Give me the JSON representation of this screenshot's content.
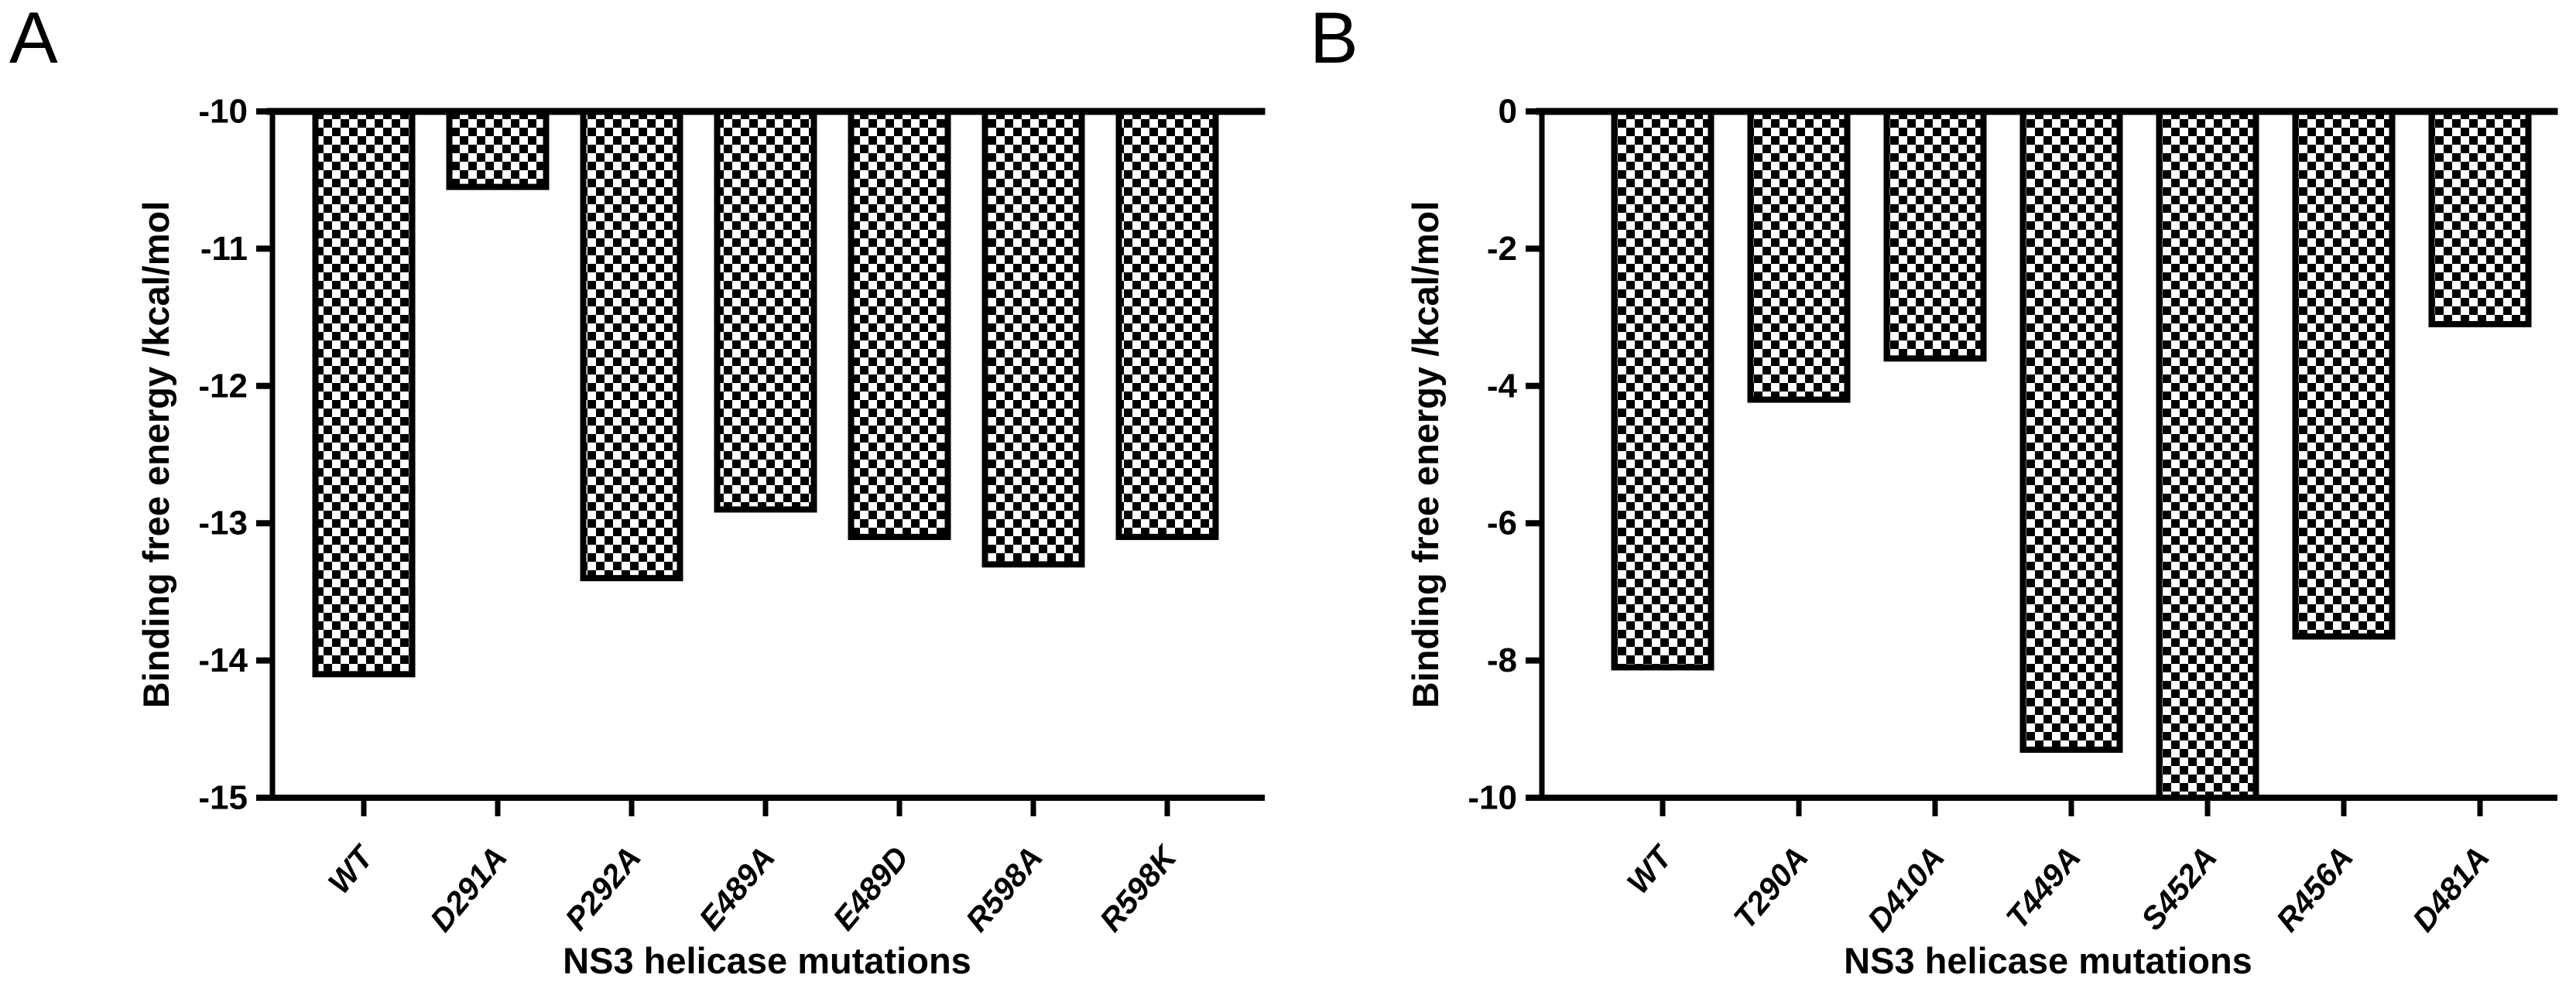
{
  "page": {
    "background": "#ffffff",
    "ink": "#000000"
  },
  "panels": [
    {
      "label": "A"
    },
    {
      "label": "B"
    }
  ],
  "chart_data": [
    {
      "type": "bar",
      "panel": "A",
      "title": "",
      "categories": [
        "WT",
        "D291A",
        "P292A",
        "E489A",
        "E489D",
        "R598A",
        "R598K"
      ],
      "values": [
        -14.1,
        -10.55,
        -13.4,
        -12.9,
        -13.1,
        -13.3,
        -13.1
      ],
      "xlabel": "NS3 helicase mutations",
      "ylabel": "Binding free energy /kcal/mol",
      "ylim": [
        -15,
        -10
      ],
      "yticks": [
        -10,
        -11,
        -12,
        -13,
        -14,
        -15
      ],
      "ytick_labels": [
        "-10",
        "-11",
        "-12",
        "-13",
        "-14",
        "-15"
      ],
      "baseline": -10,
      "bar_fill": "black-white-checkerboard",
      "bar_outline": "#000000",
      "grid": false,
      "legend": false
    },
    {
      "type": "bar",
      "panel": "B",
      "title": "",
      "categories": [
        "WT",
        "T290A",
        "D410A",
        "T449A",
        "S452A",
        "R456A",
        "D481A"
      ],
      "values": [
        -8.1,
        -4.2,
        -3.6,
        -9.3,
        -10.0,
        -7.65,
        -3.1
      ],
      "xlabel": "NS3 helicase mutations",
      "ylabel": "Binding free energy /kcal/mol",
      "ylim": [
        -10,
        0
      ],
      "yticks": [
        0,
        -2,
        -4,
        -6,
        -8,
        -10
      ],
      "ytick_labels": [
        "0",
        "-2",
        "-4",
        "-6",
        "-8",
        "-10"
      ],
      "baseline": 0,
      "bar_fill": "black-white-checkerboard",
      "bar_outline": "#000000",
      "grid": false,
      "legend": false
    }
  ]
}
